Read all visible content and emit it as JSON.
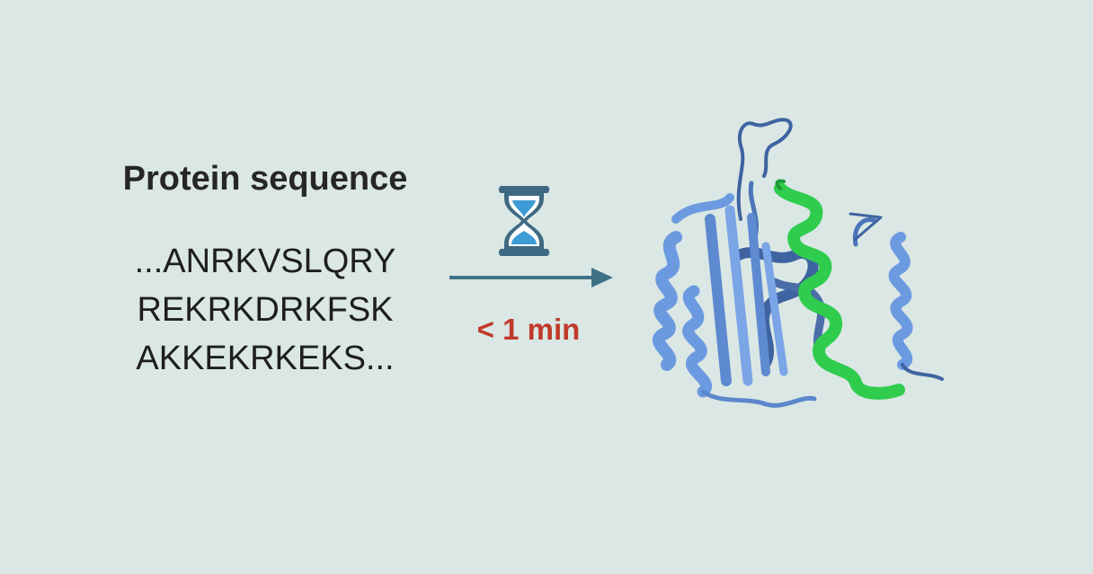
{
  "input": {
    "title": "Protein sequence",
    "sequence_lines": [
      "...ANRKVSLQRY",
      "REKRKDRKFSK",
      "AKKEKRKEKS..."
    ]
  },
  "process": {
    "icon": "hourglass-icon",
    "time_label": "< 1 min",
    "time_color": "#c0392b",
    "arrow_color": "#3e7186"
  },
  "output": {
    "icon": "protein-structure-icon",
    "colors": {
      "main": "#6c9ae0",
      "dark": "#3e63a0",
      "highlight": "#2fcc4e"
    }
  }
}
